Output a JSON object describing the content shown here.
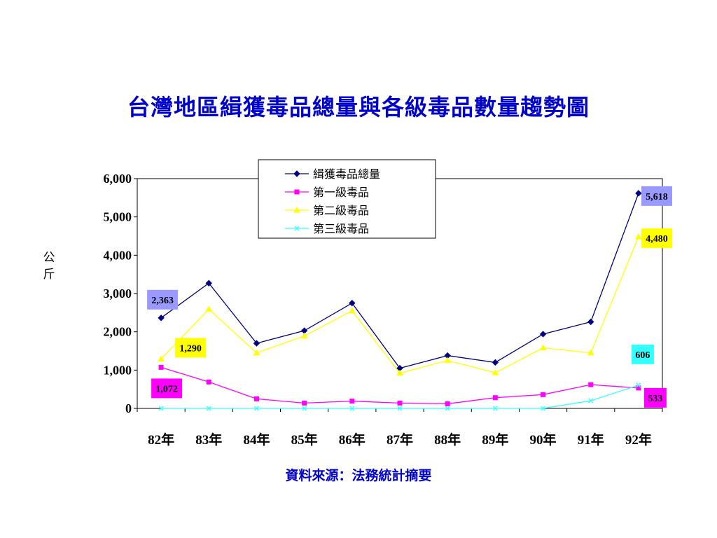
{
  "title": "台灣地區緝獲毒品總量與各級毒品數量趨勢圖",
  "source": "資料來源：法務統計摘要",
  "chart_data": {
    "type": "line",
    "title": "台灣地區緝獲毒品總量與各級毒品數量趨勢圖",
    "xlabel": "",
    "ylabel": "公斤",
    "ylim": [
      0,
      6000
    ],
    "yticks": [
      0,
      1000,
      2000,
      3000,
      4000,
      5000,
      6000
    ],
    "ytick_labels": [
      "0",
      "1,000",
      "2,000",
      "3,000",
      "4,000",
      "5,000",
      "6,000"
    ],
    "categories": [
      "82年",
      "83年",
      "84年",
      "85年",
      "86年",
      "87年",
      "88年",
      "89年",
      "90年",
      "91年",
      "92年"
    ],
    "grid": false,
    "legend_position": "top-center",
    "series": [
      {
        "name": "緝獲毒品總量",
        "color": "#000080",
        "marker": "diamond",
        "values": [
          2363,
          3270,
          1700,
          2030,
          2750,
          1050,
          1380,
          1200,
          1940,
          2260,
          5618
        ]
      },
      {
        "name": "第一級毒品",
        "color": "#ff00ff",
        "marker": "square",
        "values": [
          1072,
          690,
          250,
          140,
          190,
          140,
          120,
          280,
          360,
          620,
          533
        ]
      },
      {
        "name": "第二級毒品",
        "color": "#ffff00",
        "marker": "triangle",
        "values": [
          1290,
          2590,
          1450,
          1890,
          2550,
          920,
          1250,
          930,
          1580,
          1450,
          4480
        ]
      },
      {
        "name": "第三級毒品",
        "color": "#33ffff",
        "marker": "x",
        "values": [
          0,
          0,
          0,
          0,
          0,
          0,
          0,
          0,
          0,
          200,
          606
        ]
      }
    ],
    "data_labels": [
      {
        "series": 0,
        "index": 0,
        "text": "2,363",
        "bg": "#9999ff"
      },
      {
        "series": 0,
        "index": 10,
        "text": "5,618",
        "bg": "#9999ff"
      },
      {
        "series": 2,
        "index": 0,
        "text": "1,290",
        "bg": "#ffff00"
      },
      {
        "series": 2,
        "index": 10,
        "text": "4,480",
        "bg": "#ffff00"
      },
      {
        "series": 1,
        "index": 0,
        "text": "1,072",
        "bg": "#ff00ff"
      },
      {
        "series": 1,
        "index": 10,
        "text": "533",
        "bg": "#ff00ff"
      },
      {
        "series": 3,
        "index": 10,
        "text": "606",
        "bg": "#33ffff"
      }
    ]
  }
}
